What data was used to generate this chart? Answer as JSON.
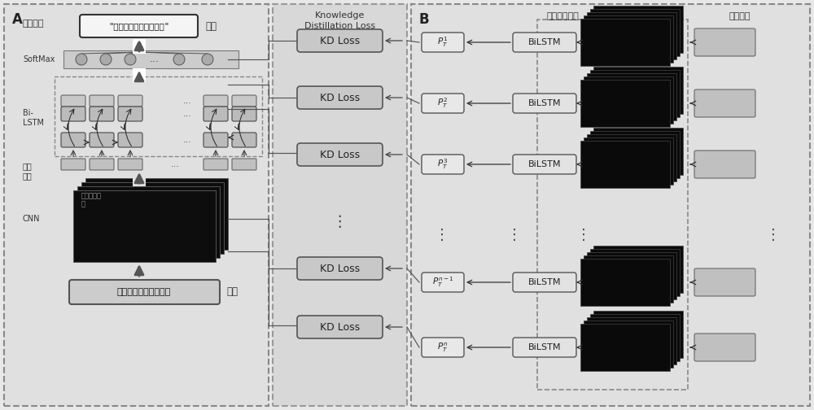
{
  "bg_color": "#e8e8e8",
  "title_a": "A",
  "title_b": "B",
  "label_student": "学生网络",
  "label_output": "输出",
  "label_softmax": "SoftMax",
  "label_bilstm_a": "Bi-\nLSTM",
  "label_feature_seq": "特征\n序列",
  "label_cnn": "CNN",
  "label_conv_map": "卷积特征映\n射",
  "label_input": "输入",
  "label_kd": "Knowledge\nDistillation Loss",
  "label_kd_loss": "KD Loss",
  "label_teacher": "教师网络",
  "label_conv_map2": "卷积特征映射",
  "label_bilstm2": "BiLSTM"
}
